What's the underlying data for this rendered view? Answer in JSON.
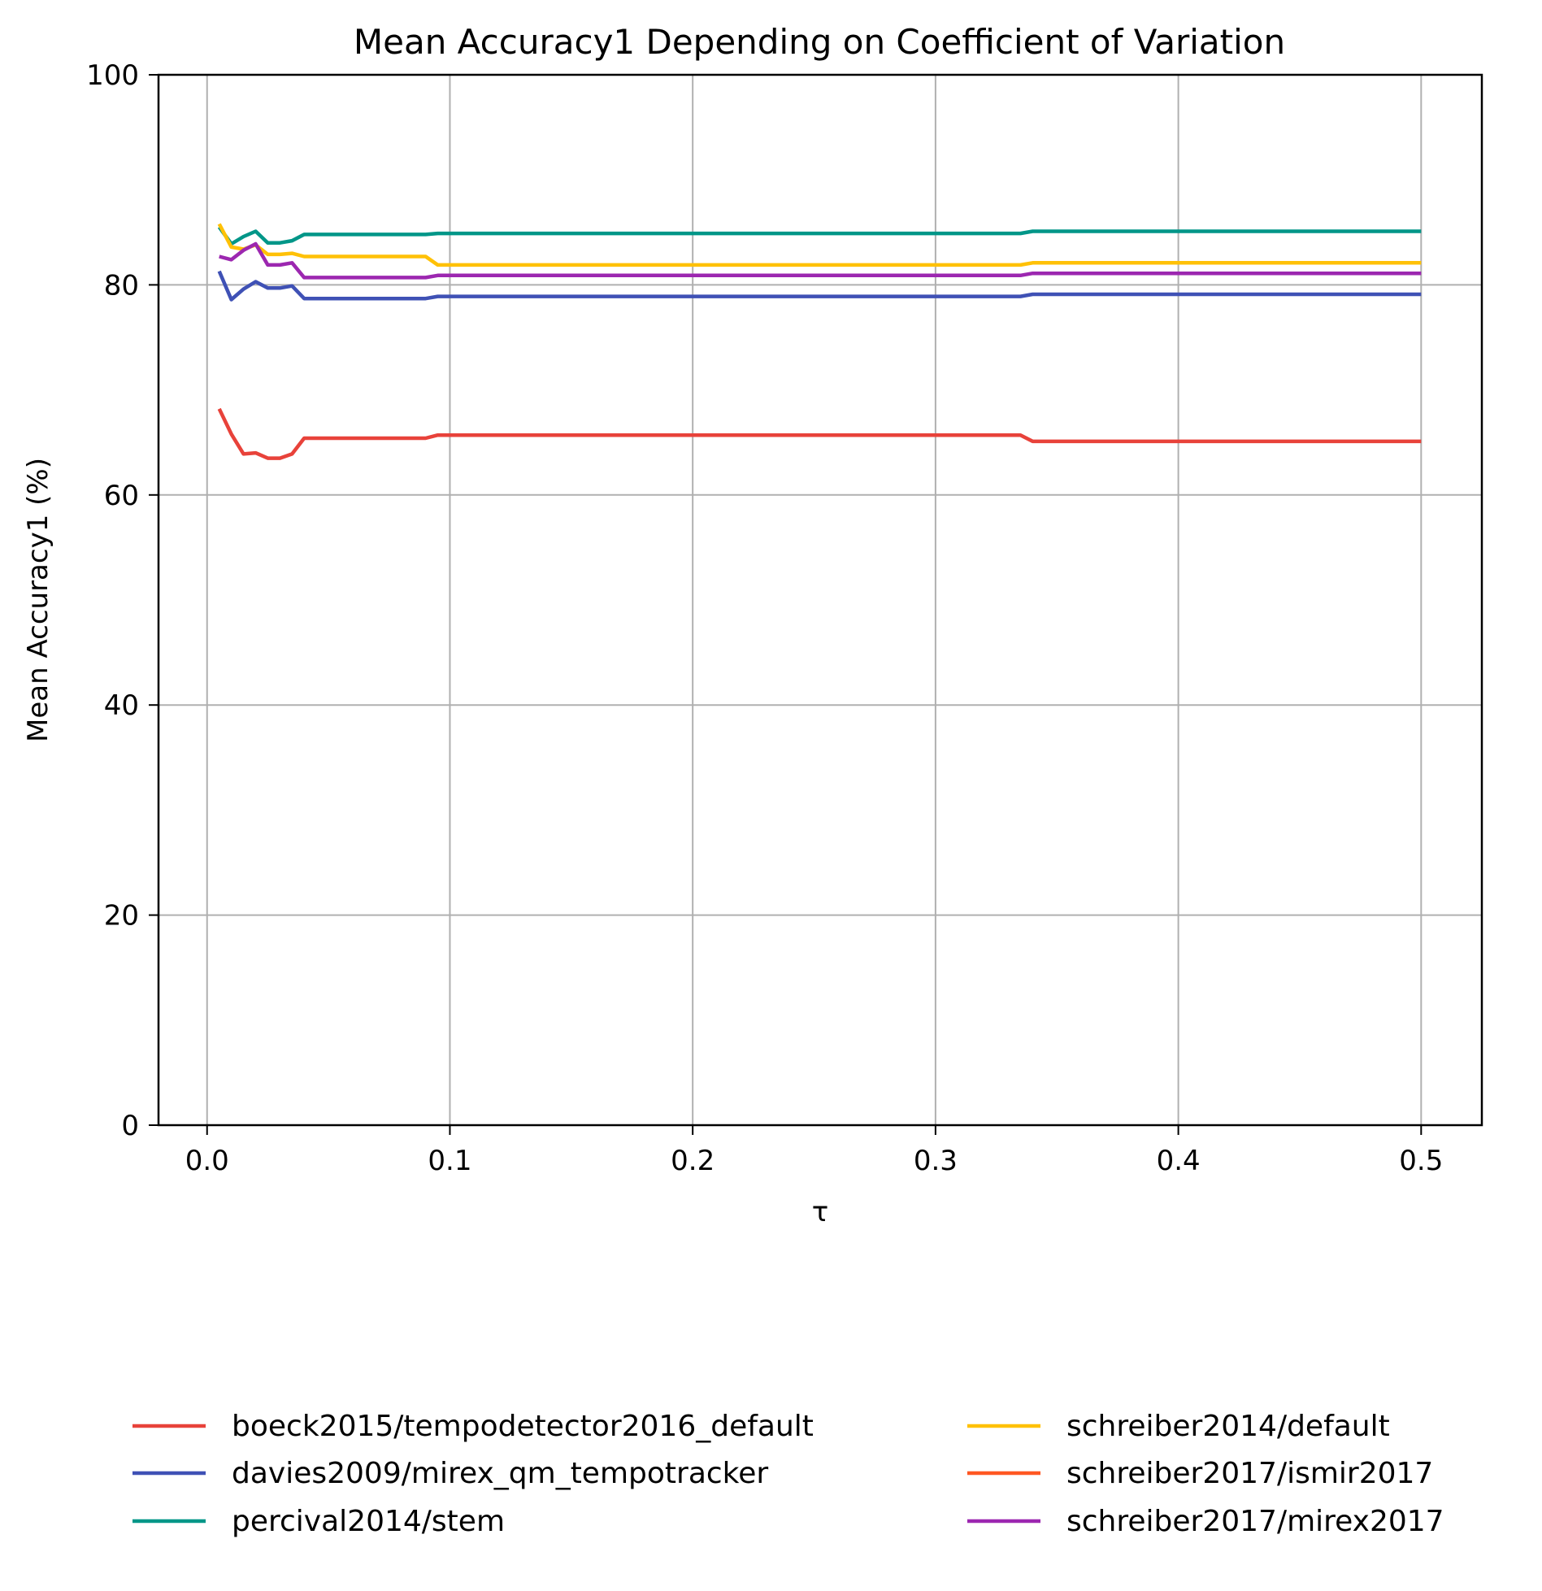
{
  "chart_data": {
    "type": "line",
    "title": "Mean Accuracy1 Depending on Coefficient of Variation",
    "xlabel": "τ",
    "ylabel": "Mean Accuracy1 (%)",
    "xlim": [
      -0.02,
      0.525
    ],
    "ylim": [
      0,
      100
    ],
    "xticks": [
      0.0,
      0.1,
      0.2,
      0.3,
      0.4,
      0.5
    ],
    "xtick_labels": [
      "0.0",
      "0.1",
      "0.2",
      "0.3",
      "0.4",
      "0.5"
    ],
    "yticks": [
      0,
      20,
      40,
      60,
      80,
      100
    ],
    "ytick_labels": [
      "0",
      "20",
      "40",
      "60",
      "80",
      "100"
    ],
    "grid": true,
    "legend_position": "bottom",
    "series": [
      {
        "name": "boeck2015/tempodetector2016_default",
        "color": "#e8423a",
        "x": [
          0.005,
          0.01,
          0.015,
          0.02,
          0.025,
          0.03,
          0.035,
          0.04,
          0.09,
          0.095,
          0.335,
          0.34,
          0.5
        ],
        "y": [
          68.2,
          65.8,
          63.9,
          64.0,
          63.5,
          63.5,
          63.9,
          65.4,
          65.4,
          65.7,
          65.7,
          65.1,
          65.1
        ]
      },
      {
        "name": "davies2009/mirex_qm_tempotracker",
        "color": "#3f51b5",
        "x": [
          0.005,
          0.01,
          0.015,
          0.02,
          0.025,
          0.03,
          0.035,
          0.04,
          0.09,
          0.095,
          0.335,
          0.34,
          0.5
        ],
        "y": [
          81.3,
          78.6,
          79.6,
          80.3,
          79.7,
          79.7,
          79.9,
          78.7,
          78.7,
          78.9,
          78.9,
          79.1,
          79.1
        ]
      },
      {
        "name": "percival2014/stem",
        "color": "#009688",
        "x": [
          0.005,
          0.01,
          0.015,
          0.02,
          0.025,
          0.03,
          0.035,
          0.04,
          0.09,
          0.095,
          0.335,
          0.34,
          0.5
        ],
        "y": [
          85.5,
          83.9,
          84.6,
          85.1,
          84.0,
          84.0,
          84.2,
          84.8,
          84.8,
          84.9,
          84.9,
          85.1,
          85.1
        ]
      },
      {
        "name": "schreiber2014/default",
        "color": "#ffc107",
        "x": [
          0.005,
          0.01,
          0.015,
          0.02,
          0.025,
          0.03,
          0.035,
          0.04,
          0.09,
          0.095,
          0.335,
          0.34,
          0.5
        ],
        "y": [
          85.8,
          83.6,
          83.4,
          83.8,
          82.9,
          82.9,
          83.0,
          82.7,
          82.7,
          81.9,
          81.9,
          82.1,
          82.1
        ]
      },
      {
        "name": "schreiber2017/ismir2017",
        "color": "#ff5722",
        "x": [],
        "y": []
      },
      {
        "name": "schreiber2017/mirex2017",
        "color": "#9c27b0",
        "x": [
          0.005,
          0.01,
          0.015,
          0.02,
          0.025,
          0.03,
          0.035,
          0.04,
          0.09,
          0.095,
          0.335,
          0.34,
          0.5
        ],
        "y": [
          82.7,
          82.4,
          83.3,
          83.9,
          81.9,
          81.9,
          82.1,
          80.7,
          80.7,
          80.9,
          80.9,
          81.1,
          81.1
        ]
      }
    ]
  }
}
